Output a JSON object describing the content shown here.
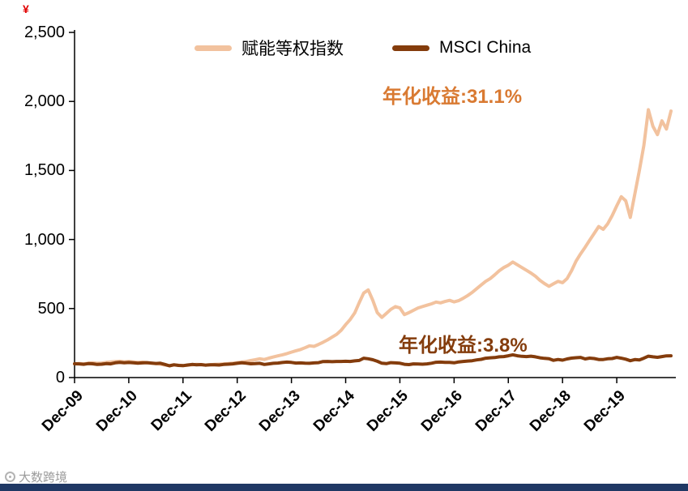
{
  "corner_mark": "¥",
  "watermark": {
    "text": "大数跨境"
  },
  "footer_bar_color": "#1F3864",
  "chart_data": {
    "type": "line",
    "title": "",
    "xlabel": "",
    "ylabel": "",
    "grid": false,
    "legend_position": "top-center",
    "ylim": [
      0,
      2500
    ],
    "y_ticks": [
      "0",
      "500",
      "1,000",
      "1,500",
      "2,000",
      "2,500"
    ],
    "y_tick_values": [
      0,
      500,
      1000,
      1500,
      2000,
      2500
    ],
    "x_tick_labels": [
      "Dec-09",
      "Dec-10",
      "Dec-11",
      "Dec-12",
      "Dec-13",
      "Dec-14",
      "Dec-15",
      "Dec-16",
      "Dec-17",
      "Dec-18",
      "Dec-19"
    ],
    "x_tick_months": [
      0,
      12,
      24,
      36,
      48,
      60,
      72,
      84,
      96,
      108,
      120
    ],
    "x_range_months": [
      0,
      132
    ],
    "legend": [
      {
        "label": "赋能等权指数",
        "color": "#F2C29E"
      },
      {
        "label": "MSCI China",
        "color": "#843C0C"
      }
    ],
    "annotations": [
      {
        "text": "年化收益:31.1%",
        "color": "#D97A32",
        "series": "赋能等权指数"
      },
      {
        "text": "年化收益:3.8%",
        "color": "#843C0C",
        "series": "MSCI China"
      }
    ],
    "series": [
      {
        "name": "赋能等权指数",
        "color": "#F2C29E",
        "width": 4,
        "values": [
          100,
          102,
          99,
          104,
          107,
          103,
          105,
          110,
          113,
          116,
          118,
          114,
          117,
          113,
          110,
          112,
          108,
          104,
          101,
          97,
          91,
          87,
          91,
          89,
          87,
          89,
          93,
          95,
          94,
          91,
          93,
          95,
          97,
          99,
          101,
          104,
          108,
          112,
          117,
          123,
          129,
          136,
          131,
          141,
          149,
          157,
          165,
          174,
          184,
          194,
          203,
          216,
          230,
          226,
          240,
          256,
          273,
          293,
          313,
          343,
          383,
          420,
          468,
          543,
          612,
          635,
          560,
          470,
          436,
          464,
          494,
          514,
          504,
          456,
          470,
          487,
          504,
          514,
          524,
          534,
          547,
          541,
          551,
          559,
          548,
          557,
          574,
          594,
          617,
          644,
          671,
          697,
          717,
          744,
          774,
          797,
          814,
          837,
          817,
          797,
          777,
          757,
          734,
          704,
          681,
          661,
          679,
          697,
          687,
          717,
          774,
          844,
          897,
          944,
          994,
          1044,
          1094,
          1074,
          1114,
          1174,
          1244,
          1310,
          1280,
          1160,
          1330,
          1500,
          1680,
          1940,
          1820,
          1760,
          1860,
          1800,
          1930
        ]
      },
      {
        "name": "MSCI China",
        "color": "#843C0C",
        "width": 4,
        "values": [
          100,
          99,
          96,
          101,
          100,
          95,
          97,
          101,
          99,
          107,
          110,
          107,
          109,
          107,
          104,
          106,
          108,
          105,
          102,
          104,
          95,
          85,
          93,
          88,
          86,
          91,
          95,
          93,
          94,
          90,
          92,
          93,
          91,
          95,
          97,
          99,
          103,
          107,
          104,
          100,
          101,
          103,
          95,
          99,
          103,
          105,
          109,
          112,
          110,
          105,
          106,
          104,
          103,
          106,
          108,
          116,
          117,
          115,
          117,
          117,
          118,
          117,
          121,
          124,
          140,
          136,
          129,
          118,
          104,
          101,
          108,
          106,
          104,
          96,
          94,
          99,
          98,
          97,
          99,
          104,
          111,
          112,
          110,
          110,
          107,
          113,
          117,
          120,
          122,
          128,
          132,
          140,
          143,
          145,
          150,
          152,
          158,
          165,
          158,
          154,
          152,
          155,
          150,
          143,
          139,
          137,
          125,
          131,
          126,
          135,
          141,
          144,
          146,
          135,
          141,
          138,
          131,
          131,
          136,
          138,
          146,
          140,
          133,
          122,
          130,
          128,
          140,
          155,
          150,
          147,
          152,
          157,
          158
        ]
      }
    ]
  }
}
